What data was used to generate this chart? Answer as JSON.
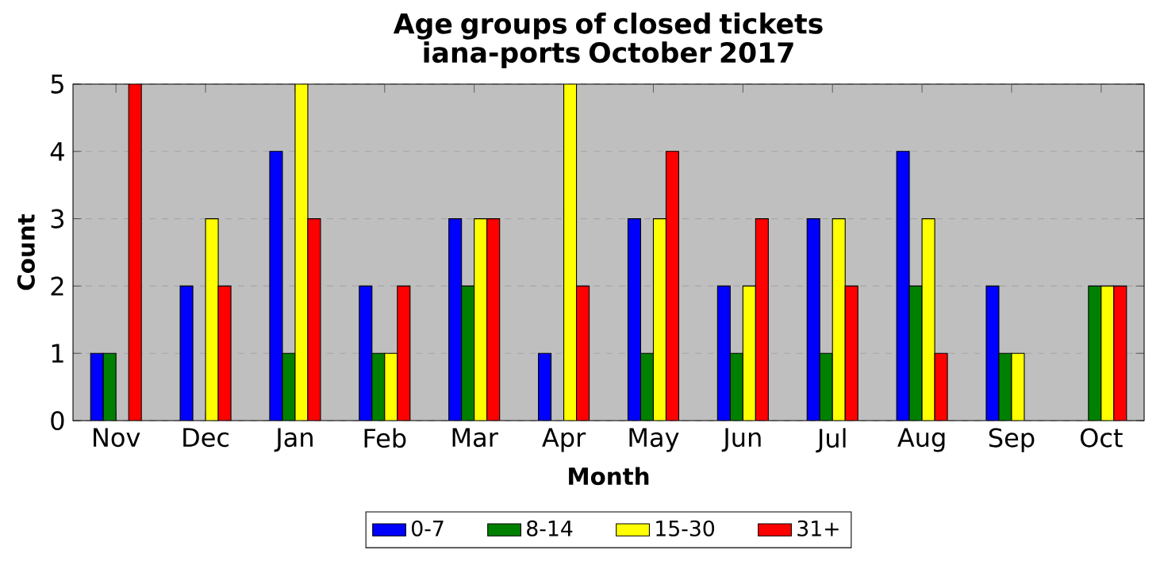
{
  "chart_data": {
    "type": "bar",
    "title": "Age groups of closed tickets iana-ports October 2017",
    "xlabel": "Month",
    "ylabel": "Count",
    "categories": [
      "Nov",
      "Dec",
      "Jan",
      "Feb",
      "Mar",
      "Apr",
      "May",
      "Jun",
      "Jul",
      "Aug",
      "Sep",
      "Oct"
    ],
    "series": [
      {
        "name": "0-7",
        "color": "#0000ff",
        "values": [
          1,
          2,
          4,
          2,
          3,
          1,
          3,
          2,
          3,
          4,
          2,
          0
        ]
      },
      {
        "name": "8-14",
        "color": "#008000",
        "values": [
          1,
          0,
          1,
          1,
          2,
          0,
          1,
          1,
          1,
          2,
          1,
          2
        ]
      },
      {
        "name": "15-30",
        "color": "#ffff00",
        "values": [
          0,
          3,
          5,
          1,
          3,
          5,
          3,
          2,
          3,
          3,
          1,
          2
        ]
      },
      {
        "name": "31+",
        "color": "#ff0000",
        "values": [
          5,
          2,
          3,
          2,
          3,
          2,
          4,
          3,
          2,
          1,
          0,
          2
        ]
      }
    ],
    "ylim": [
      0,
      5
    ],
    "yticks": [
      0,
      1,
      2,
      3,
      4,
      5
    ],
    "grid": "y",
    "legend": "bottom"
  }
}
